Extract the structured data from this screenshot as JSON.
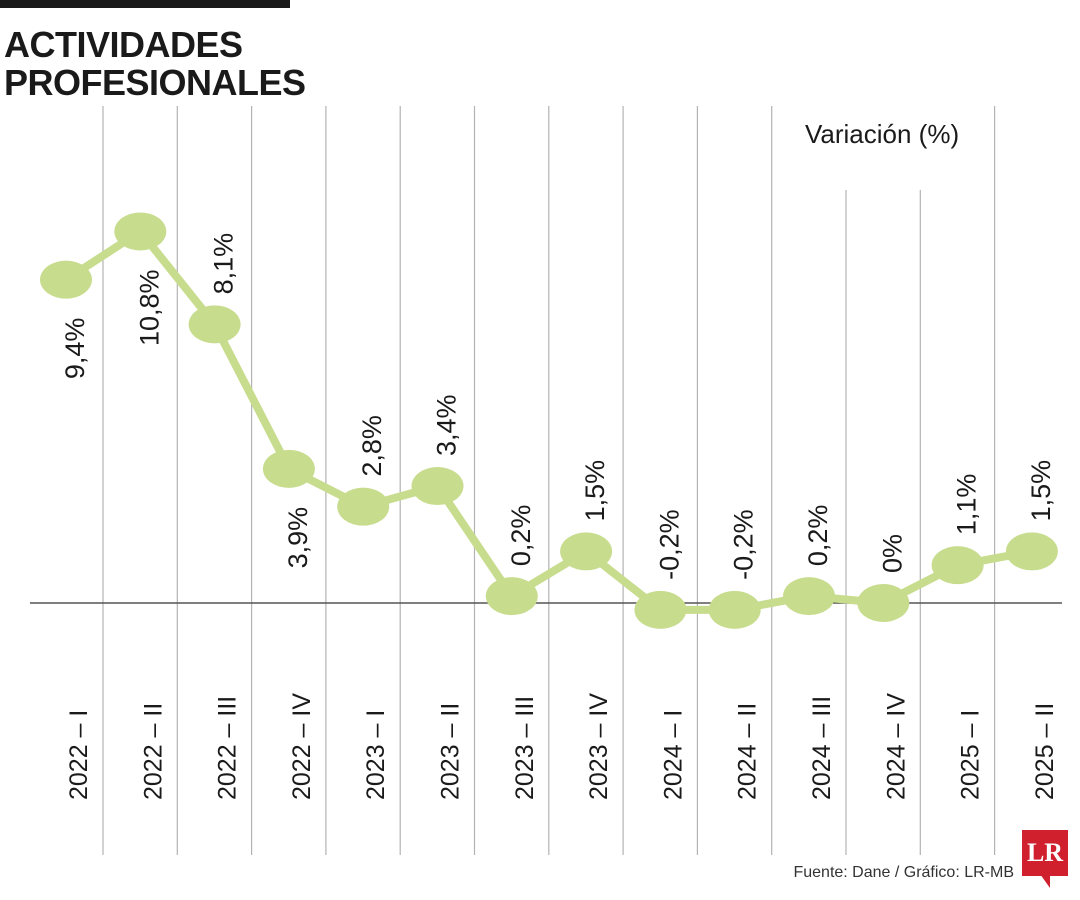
{
  "header": {
    "title_line1": "ACTIVIDADES",
    "title_line2": "PROFESIONALES"
  },
  "footer": {
    "source": "Fuente: Dane / Gráfico: LR-MB",
    "logo_text": "LR"
  },
  "colors": {
    "line": "#c8dc8e",
    "marker": "#c8dc8e",
    "grid": "#b3b3b3",
    "axis": "#555555",
    "text": "#1a1a1a",
    "brand": "#d0202e"
  },
  "chart_data": {
    "type": "line",
    "title": "ACTIVIDADES PROFESIONALES",
    "ylabel": "Variación (%)",
    "xlabel": "",
    "ylim": [
      -0.2,
      10.8
    ],
    "grid": true,
    "categories": [
      "2022 – I",
      "2022 – II",
      "2022 – III",
      "2022 – IV",
      "2023 – I",
      "2023 – II",
      "2023 – III",
      "2023 – IV",
      "2024 – I",
      "2024 – II",
      "2024 – III",
      "2024 – IV",
      "2025 – I",
      "2025 – II"
    ],
    "series": [
      {
        "name": "Variación (%)",
        "values": [
          9.4,
          10.8,
          8.1,
          3.9,
          2.8,
          3.4,
          0.2,
          1.5,
          -0.2,
          -0.2,
          0.2,
          0,
          1.1,
          1.5
        ],
        "labels": [
          "9,4%",
          "10,8%",
          "8,1%",
          "3,9%",
          "2,8%",
          "3,4%",
          "0,2%",
          "1,5%",
          "-0,2%",
          "-0,2%",
          "0,2%",
          "0%",
          "1,1%",
          "1,5%"
        ]
      }
    ]
  }
}
